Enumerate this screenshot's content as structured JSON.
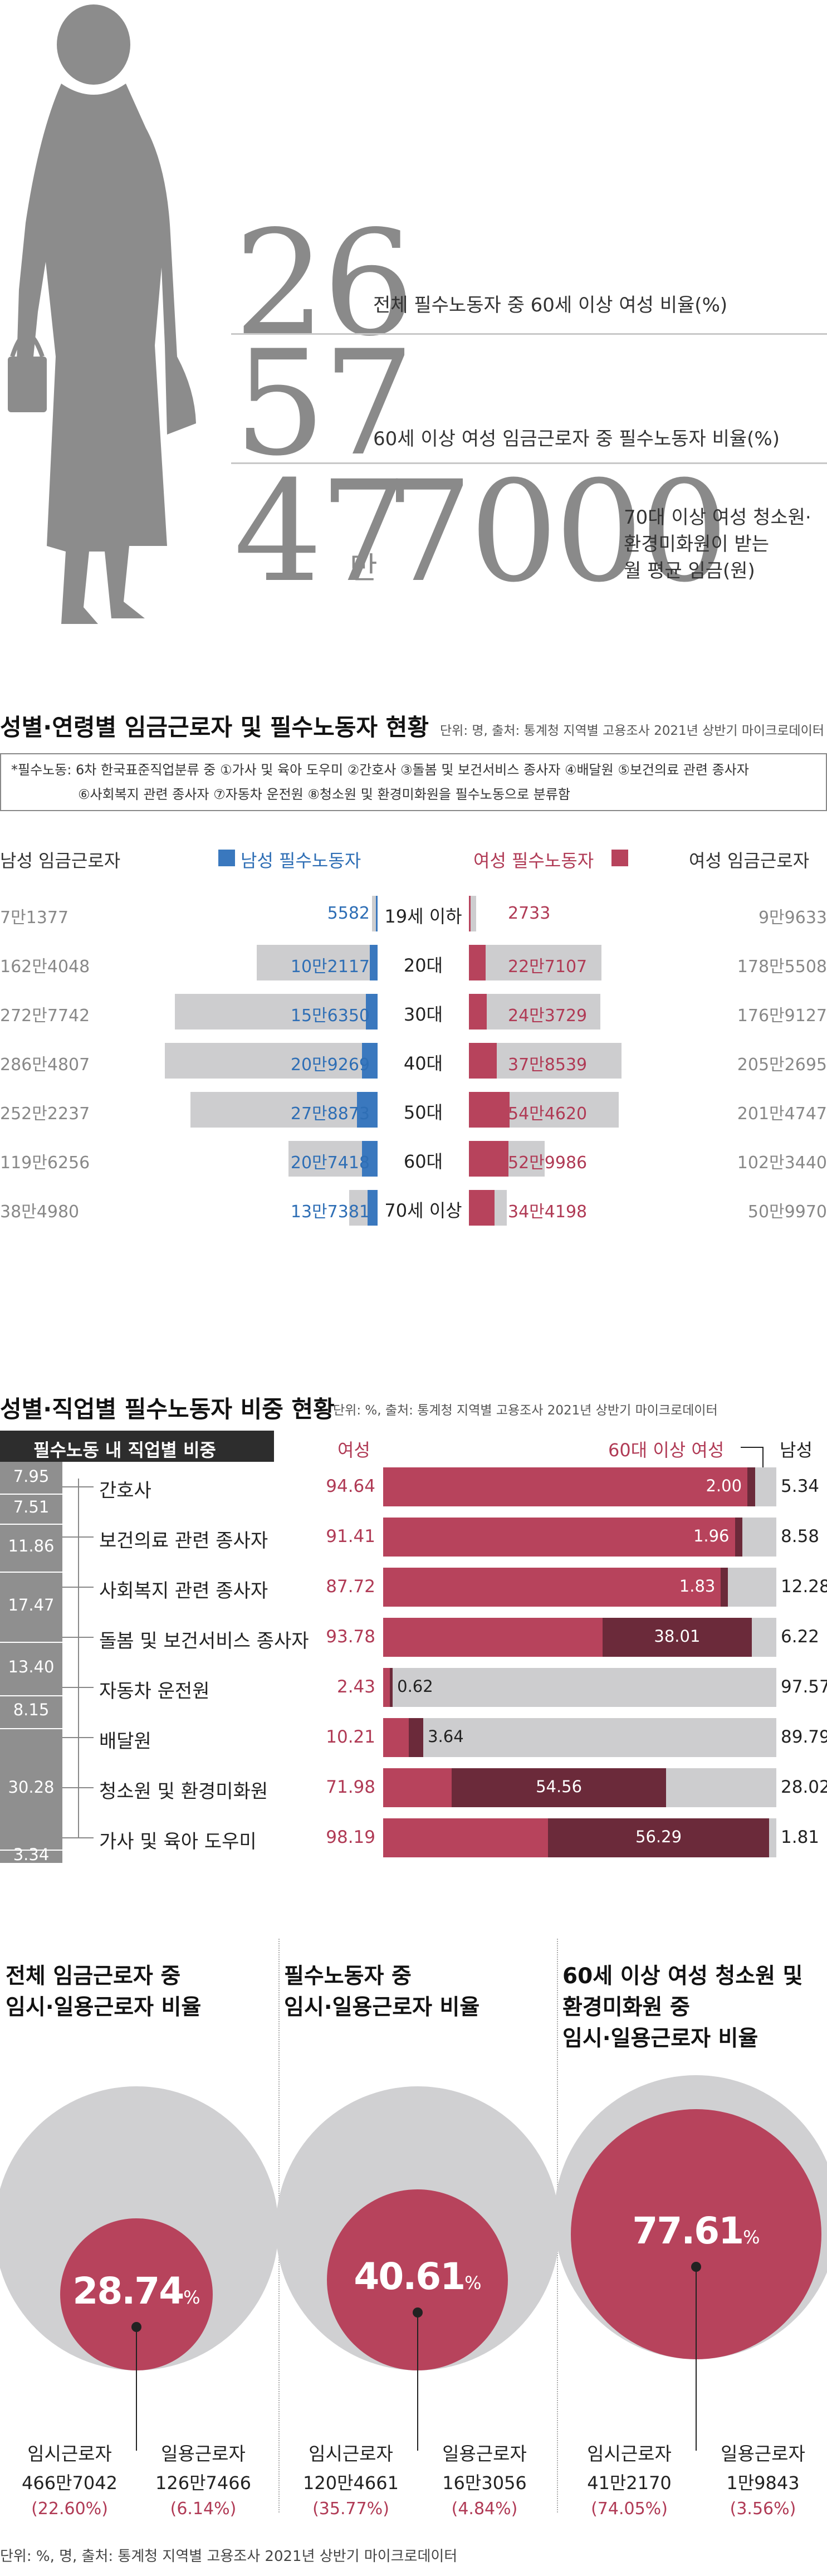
{
  "stats": [
    {
      "number": "26",
      "desc": "전체 필수노동자 중 60세 이상 여성 비율(%)"
    },
    {
      "number": "57",
      "desc": "60세 이상 여성 임금근로자 중 필수노동자 비율(%)"
    },
    {
      "number_a": "47",
      "unit_mid": "만",
      "number_b": "7000",
      "desc_lines": [
        "70대 이상 여성 청소원·",
        "환경미화원이 받는",
        "월 평균 임금(원)"
      ]
    }
  ],
  "section1": {
    "title": "성별·연령별 임금근로자 및 필수노동자 현황",
    "unit": "단위: 명, 출처: 통계청 지역별 고용조사 2021년 상반기 마이크로데이터",
    "note_lines": [
      "*필수노동: 6차 한국표준직업분류 중 ①가사 및 육아 도우미 ②간호사 ③돌봄 및 보건서비스 종사자 ④배달원 ⑤보건의료 관련 종사자",
      "⑥사회복지 관련 종사자 ⑦자동차 운전원 ⑧청소원 및 환경미화원을 필수노동으로 분류함"
    ],
    "headers": {
      "male_wage": "남성 임금근로자",
      "male_ess": "남성 필수노동자",
      "female_ess": "여성 필수노동자",
      "female_wage": "여성 임금근로자"
    }
  },
  "chart_data": [
    {
      "type": "bar",
      "title": "성별·연령별 임금근로자 및 필수노동자 현황",
      "categories": [
        "19세 이하",
        "20대",
        "30대",
        "40대",
        "50대",
        "60대",
        "70세 이상"
      ],
      "series": [
        {
          "name": "남성 임금근로자",
          "values": [
            71377,
            1624048,
            2727742,
            2864807,
            2522237,
            1196256,
            384980
          ],
          "labels": [
            "7만1377",
            "162만4048",
            "272만7742",
            "286만4807",
            "252만2237",
            "119만6256",
            "38만4980"
          ]
        },
        {
          "name": "남성 필수노동자",
          "values": [
            5582,
            102117,
            156350,
            209269,
            278873,
            207418,
            137381
          ],
          "labels": [
            "5582",
            "10만2117",
            "15만6350",
            "20만9269",
            "27만8873",
            "20만7418",
            "13만7381"
          ]
        },
        {
          "name": "여성 필수노동자",
          "values": [
            2733,
            227107,
            243729,
            378539,
            544620,
            529986,
            344198
          ],
          "labels": [
            "2733",
            "22만7107",
            "24만3729",
            "37만8539",
            "54만4620",
            "52만9986",
            "34만4198"
          ]
        },
        {
          "name": "여성 임금근로자",
          "values": [
            99633,
            1785508,
            1769127,
            2052695,
            2014747,
            1023440,
            509970
          ],
          "labels": [
            "9만9633",
            "178만5508",
            "176만9127",
            "205만2695",
            "201만4747",
            "102만3440",
            "50만9970"
          ]
        }
      ]
    },
    {
      "type": "bar",
      "title": "성별·직업별 필수노동자 비중 현황",
      "categories": [
        "간호사",
        "보건의료 관련 종사자",
        "사회복지 관련 종사자",
        "돌봄 및 보건서비스 종사자",
        "자동차 운전원",
        "배달원",
        "청소원 및 환경미화원",
        "가사 및 육아 도우미"
      ],
      "series": [
        {
          "name": "필수노동 내 직업별 비중",
          "values": [
            7.95,
            7.51,
            11.86,
            17.47,
            13.4,
            8.15,
            30.28,
            3.34
          ],
          "labels": [
            "7.95",
            "7.51",
            "11.86",
            "17.47",
            "13.40",
            "8.15",
            "30.28",
            "3.34"
          ]
        },
        {
          "name": "여성",
          "values": [
            94.64,
            91.41,
            87.72,
            93.78,
            2.43,
            10.21,
            71.98,
            98.19
          ],
          "labels": [
            "94.64",
            "91.41",
            "87.72",
            "93.78",
            "2.43",
            "10.21",
            "71.98",
            "98.19"
          ]
        },
        {
          "name": "60대 이상 여성",
          "values": [
            2.0,
            1.96,
            1.83,
            38.01,
            0.62,
            3.64,
            54.56,
            56.29
          ],
          "labels": [
            "2.00",
            "1.96",
            "1.83",
            "38.01",
            "0.62",
            "3.64",
            "54.56",
            "56.29"
          ]
        },
        {
          "name": "남성",
          "values": [
            5.34,
            8.58,
            12.28,
            6.22,
            97.57,
            89.79,
            28.02,
            1.81
          ],
          "labels": [
            "5.34",
            "8.58",
            "12.28",
            "6.22",
            "97.57",
            "89.79",
            "28.02",
            "1.81"
          ]
        }
      ]
    },
    {
      "type": "pie",
      "title": "",
      "charts": [
        {
          "title_lines": [
            "전체 임금근로자 중",
            "임시·일용근로자 비율"
          ],
          "total_pct": 28.74,
          "parts": [
            {
              "label": "임시근로자",
              "count": "466만7042",
              "pct": "(22.60%)"
            },
            {
              "label": "일용근로자",
              "count": "126만7466",
              "pct": "(6.14%)"
            }
          ]
        },
        {
          "title_lines": [
            "필수노동자 중",
            "임시·일용근로자 비율"
          ],
          "total_pct": 40.61,
          "parts": [
            {
              "label": "임시근로자",
              "count": "120만4661",
              "pct": "(35.77%)"
            },
            {
              "label": "일용근로자",
              "count": "16만3056",
              "pct": "(4.84%)"
            }
          ]
        },
        {
          "title_lines": [
            "60세 이상 여성 청소원 및",
            "환경미화원 중",
            "임시·일용근로자 비율"
          ],
          "total_pct": 77.61,
          "parts": [
            {
              "label": "임시근로자",
              "count": "41만2170",
              "pct": "(74.05%)"
            },
            {
              "label": "일용근로자",
              "count": "1만9843",
              "pct": "(3.56%)"
            }
          ]
        }
      ]
    }
  ],
  "section2": {
    "title": "성별·직업별 필수노동자 비중 현황",
    "unit": "단위: %, 출처: 통계청 지역별 고용조사 2021년 상반기 마이크로데이터",
    "share_header": "필수노동 내 직업별 비중",
    "col_female": "여성",
    "col_60": "60대 이상 여성",
    "col_male": "남성"
  },
  "pct_sign": "%",
  "footer": "단위: %, 명, 출처: 통계청 지역별 고용조사 2021년 상반기 마이크로데이터",
  "colors": {
    "male": "#3a78be",
    "female": "#b7435c",
    "female60": "#6b2a3a",
    "grey": "#cdcdcf",
    "silhouette": "#8a8a8a"
  }
}
